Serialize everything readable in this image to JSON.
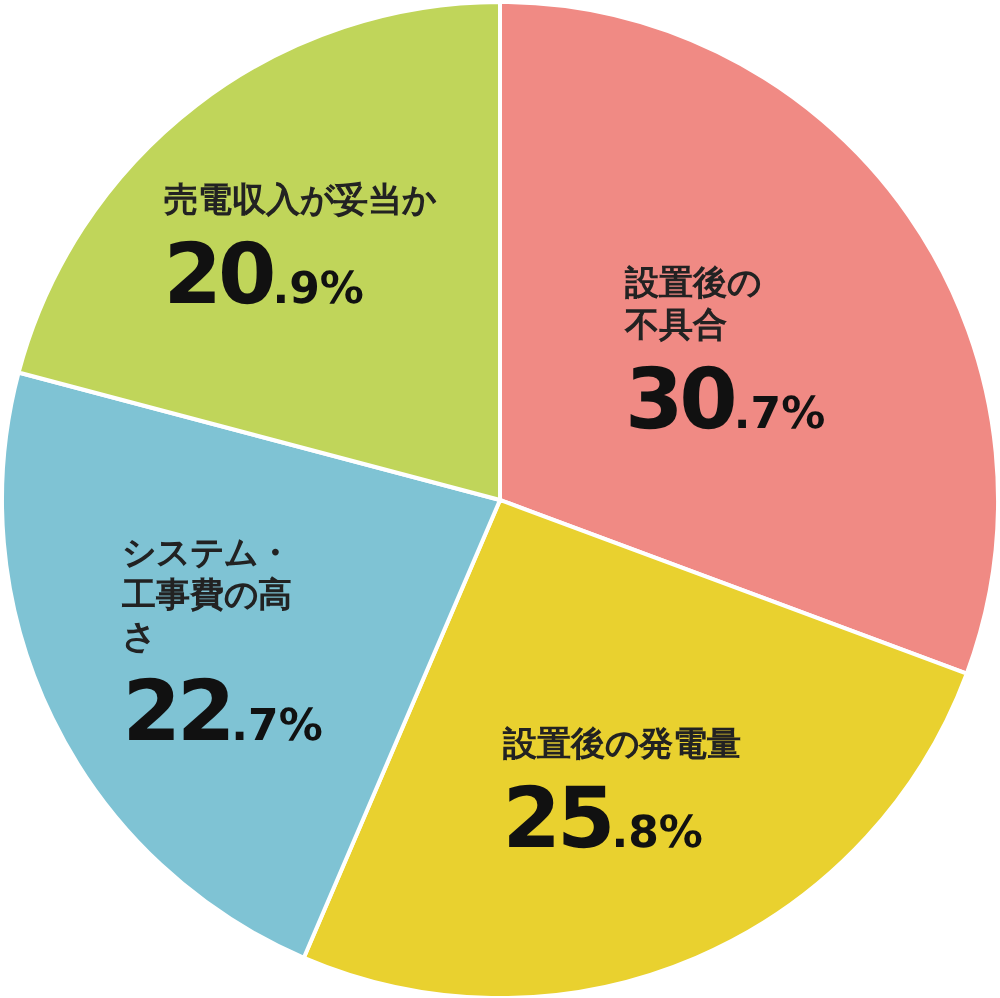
{
  "chart_data": {
    "type": "pie",
    "categories": [
      "設置後の不具合",
      "設置後の発電量",
      "システム・工事費の高さ",
      "売電収入が妥当か"
    ],
    "values": [
      30.7,
      25.8,
      22.7,
      20.9
    ],
    "value_labels": [
      "30.7%",
      "25.8%",
      "22.7%",
      "20.9%"
    ],
    "colors": [
      "#f08a84",
      "#e9d12f",
      "#7fc3d4",
      "#c0d55a"
    ]
  }
}
